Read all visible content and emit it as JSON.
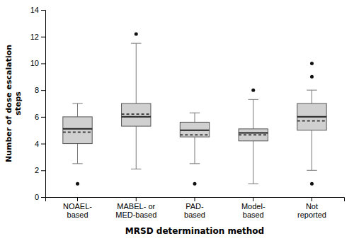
{
  "chart_data": {
    "type": "box",
    "xlabel": "MRSD determination method",
    "ylabel": "Number of dose escalation\nsteps",
    "categories": [
      "NOAEL-\nbased",
      "MABEL- or\nMED-based",
      "PAD-\nbased",
      "Model-\nbased",
      "Not\nreported"
    ],
    "boxes": [
      {
        "q1": 4.0,
        "median": 5.1,
        "mean": 4.85,
        "q3": 6.0,
        "whislo": 2.5,
        "whishi": 7.0,
        "fliers": [
          1.0
        ]
      },
      {
        "q1": 5.3,
        "median": 6.0,
        "mean": 6.2,
        "q3": 7.0,
        "whislo": 2.1,
        "whishi": 11.5,
        "fliers": [
          12.2
        ]
      },
      {
        "q1": 4.5,
        "median": 5.0,
        "mean": 4.65,
        "q3": 5.6,
        "whislo": 2.5,
        "whishi": 6.3,
        "fliers": [
          1.0
        ]
      },
      {
        "q1": 4.2,
        "median": 4.8,
        "mean": 4.65,
        "q3": 5.1,
        "whislo": 1.0,
        "whishi": 7.3,
        "fliers": [
          8.0
        ]
      },
      {
        "q1": 5.0,
        "median": 6.0,
        "mean": 5.7,
        "q3": 7.0,
        "whislo": 2.0,
        "whishi": 8.0,
        "fliers": [
          1.0,
          9.0,
          10.0
        ]
      }
    ],
    "ylim": [
      0,
      14
    ],
    "yticks": [
      0,
      2,
      4,
      6,
      8,
      10,
      12,
      14
    ],
    "color": "#d0d0d0",
    "grid": false
  }
}
